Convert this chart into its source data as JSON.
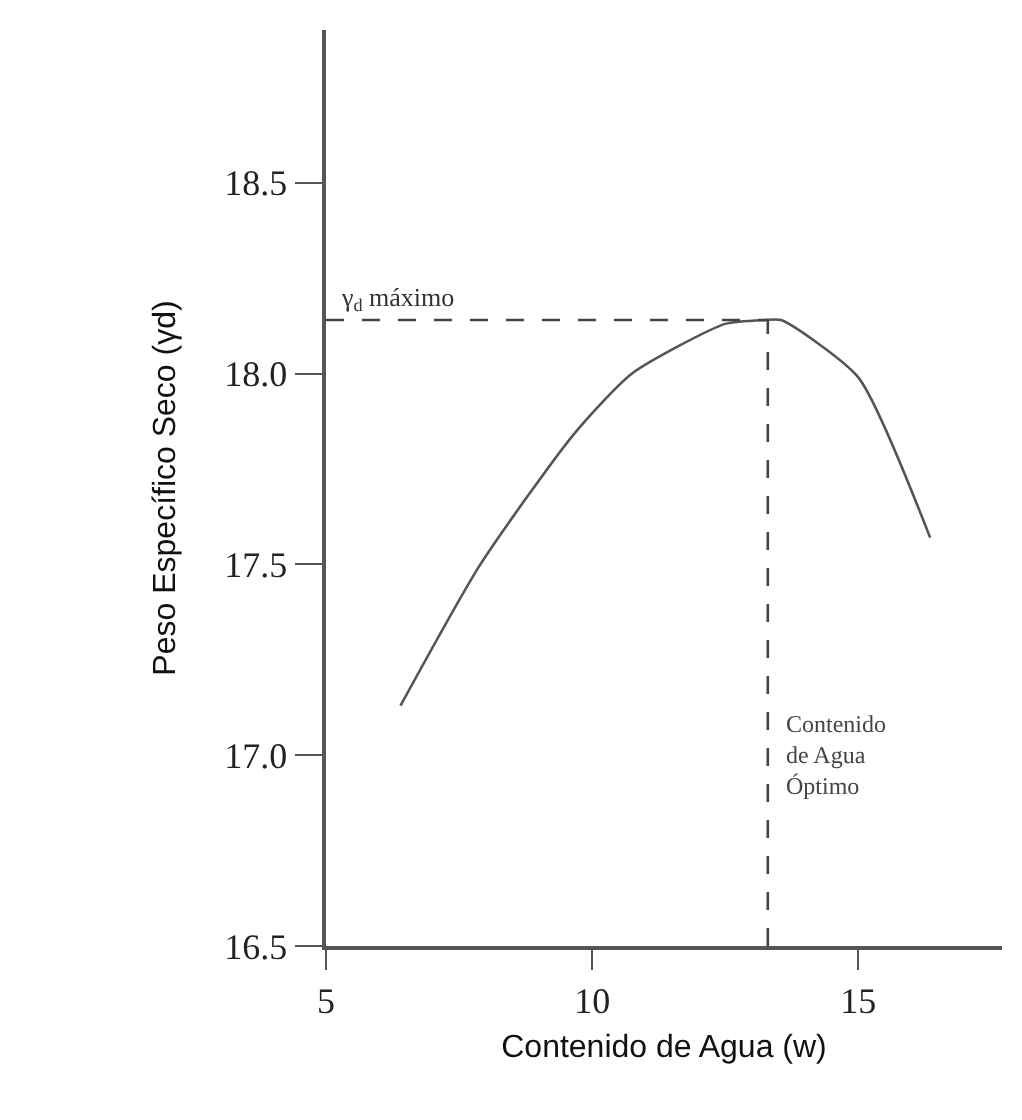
{
  "chart_data": {
    "type": "line",
    "xlabel": "Contenido de Agua (w)",
    "ylabel": "Peso Específico Seco (γd)",
    "x": [
      6.4,
      7.9,
      9.65,
      10.75,
      12.5,
      13.25,
      13.55,
      15.0,
      16.35
    ],
    "series": [
      {
        "color": "#555555",
        "values": [
          17.13,
          17.5,
          17.84,
          18.0,
          18.13,
          18.14,
          18.14,
          17.99,
          17.57
        ]
      }
    ],
    "xlim": [
      5,
      17.7
    ],
    "ylim": [
      16.5,
      18.9
    ],
    "xticks": [
      5,
      10,
      15
    ],
    "yticks": [
      {
        "value": 16.5,
        "label": "16.5"
      },
      {
        "value": 17.0,
        "label": "17.0"
      },
      {
        "value": 17.5,
        "label": "17.5"
      },
      {
        "value": 18.0,
        "label": "18.0"
      },
      {
        "value": 18.5,
        "label": "18.5"
      }
    ],
    "ref_lines": [
      {
        "axis": "y",
        "value": 18.14,
        "label": "γ$_{d}$ máximo",
        "color": "#444444",
        "line_style": "dashed"
      },
      {
        "axis": "x",
        "value": 13.3,
        "label": "Contenido de Agua Óptimo",
        "color": "#444444",
        "line_style": "dashed"
      }
    ],
    "marker": "none",
    "line_style": "solid"
  }
}
